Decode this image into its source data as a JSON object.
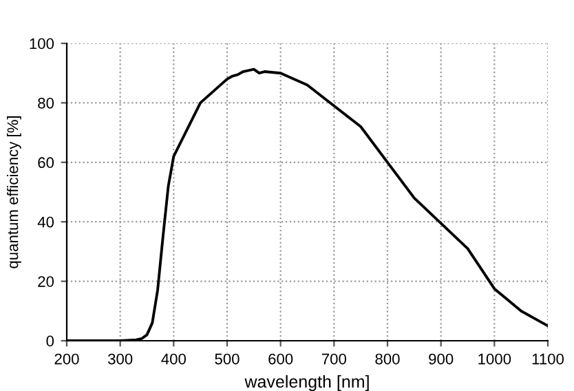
{
  "chart_data": {
    "type": "line",
    "xlabel": "wavelength [nm]",
    "ylabel": "quantum efficiency [%]",
    "x": [
      200,
      300,
      330,
      340,
      350,
      360,
      370,
      380,
      390,
      400,
      450,
      500,
      510,
      520,
      530,
      550,
      560,
      570,
      600,
      650,
      700,
      750,
      800,
      850,
      900,
      950,
      1000,
      1050,
      1100
    ],
    "series": [
      {
        "color": "#000000",
        "values": [
          0,
          0,
          0.3,
          0.7,
          2,
          6,
          17,
          35,
          52,
          62,
          80,
          88,
          89,
          89.5,
          90.5,
          91.3,
          90,
          90.5,
          90,
          86,
          79,
          72,
          60,
          48,
          39.5,
          31,
          17.5,
          10,
          5
        ]
      }
    ],
    "xlim": [
      200,
      1100
    ],
    "ylim": [
      0,
      100
    ],
    "xticks": [
      200,
      300,
      400,
      500,
      600,
      700,
      800,
      900,
      1000,
      1100
    ],
    "yticks": [
      0,
      20,
      40,
      60,
      80,
      100
    ],
    "grid": true,
    "marker": "none",
    "line_style": "solid"
  }
}
